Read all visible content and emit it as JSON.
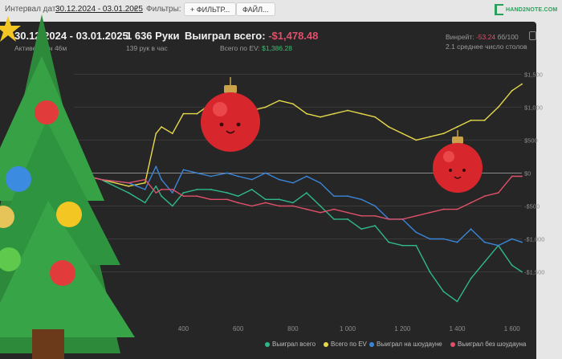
{
  "filters": {
    "date_label": "Интервал дат:",
    "date_value": "30.12.2024 - 03.01.2025",
    "filters_label": "Фильтры:",
    "filter_button": "ФИЛЬТР...",
    "file_button": "ФАЙЛ...",
    "logo": "HAND2NOTE.COM"
  },
  "summary": {
    "date_range": "30.12.2024 - 03.01.2025",
    "active": "Активен 11ч 46м",
    "hands": "1 636 Руки",
    "hands_per_hour": "139 рук в час",
    "won_label": "Выиграл всего:",
    "won_value": "-$1,478.48",
    "ev_label": "Всего по EV:",
    "ev_value": "$1,386.28",
    "winrate_label": "Винрейт:",
    "winrate_value": "-53.24",
    "winrate_unit": "бб/100",
    "tables": "2.1 среднее число столов"
  },
  "colors": {
    "won": "#2fb98a",
    "ev": "#e6d94a",
    "showdown": "#3a86d8",
    "non_showdown": "#e0506a"
  },
  "chart_data": {
    "type": "line",
    "xlim": [
      0,
      1636
    ],
    "ylim": [
      -2250,
      1700
    ],
    "x_ticks": [
      400,
      600,
      800,
      1000,
      1200,
      1400,
      1600
    ],
    "x_tick_labels": [
      "400",
      "600",
      "800",
      "1 000",
      "1 200",
      "1 400",
      "1 600"
    ],
    "y_ticks": [
      1500,
      1000,
      500,
      0,
      -500,
      -1000,
      -1500
    ],
    "y_tick_labels": [
      "$1,500",
      "$1,000",
      "$500",
      "$0",
      "-$500",
      "-$1,000",
      "-$1,500"
    ],
    "grid": "horizontal",
    "legend_position": "bottom-right",
    "x": [
      0,
      100,
      200,
      260,
      300,
      320,
      360,
      400,
      450,
      500,
      560,
      600,
      650,
      700,
      750,
      800,
      850,
      900,
      950,
      1000,
      1050,
      1100,
      1150,
      1200,
      1250,
      1300,
      1350,
      1400,
      1450,
      1500,
      1550,
      1600,
      1636
    ],
    "series": [
      {
        "name": "Выиграл всего",
        "key": "won",
        "values": [
          0,
          -100,
          -300,
          -450,
          -200,
          -350,
          -500,
          -300,
          -250,
          -250,
          -300,
          -350,
          -250,
          -400,
          -400,
          -450,
          -300,
          -500,
          -700,
          -700,
          -850,
          -800,
          -1050,
          -1100,
          -1100,
          -1500,
          -1800,
          -1950,
          -1600,
          -1350,
          -1100,
          -1400,
          -1500
        ]
      },
      {
        "name": "Всего по EV",
        "key": "ev",
        "values": [
          0,
          -100,
          -200,
          -150,
          600,
          700,
          600,
          900,
          900,
          1050,
          1100,
          1000,
          950,
          1000,
          1100,
          1050,
          900,
          850,
          900,
          950,
          900,
          850,
          700,
          600,
          500,
          550,
          600,
          700,
          800,
          800,
          1000,
          1250,
          1350
        ]
      },
      {
        "name": "Выиграл на шоудауне",
        "key": "showdown",
        "values": [
          0,
          -100,
          -150,
          -250,
          100,
          -100,
          -300,
          50,
          0,
          -50,
          0,
          -50,
          -100,
          0,
          -100,
          -150,
          -50,
          -150,
          -350,
          -350,
          -400,
          -500,
          -700,
          -700,
          -900,
          -1000,
          -1000,
          -1050,
          -850,
          -1050,
          -1100,
          -1000,
          -1050
        ]
      },
      {
        "name": "Выиграл без шоудауна",
        "key": "non_showdown",
        "values": [
          0,
          -100,
          -150,
          -100,
          -300,
          -250,
          -250,
          -350,
          -350,
          -400,
          -400,
          -450,
          -500,
          -450,
          -500,
          -500,
          -550,
          -600,
          -550,
          -600,
          -650,
          -650,
          -700,
          -700,
          -650,
          -600,
          -550,
          -550,
          -450,
          -350,
          -300,
          -50,
          -50
        ]
      }
    ]
  }
}
